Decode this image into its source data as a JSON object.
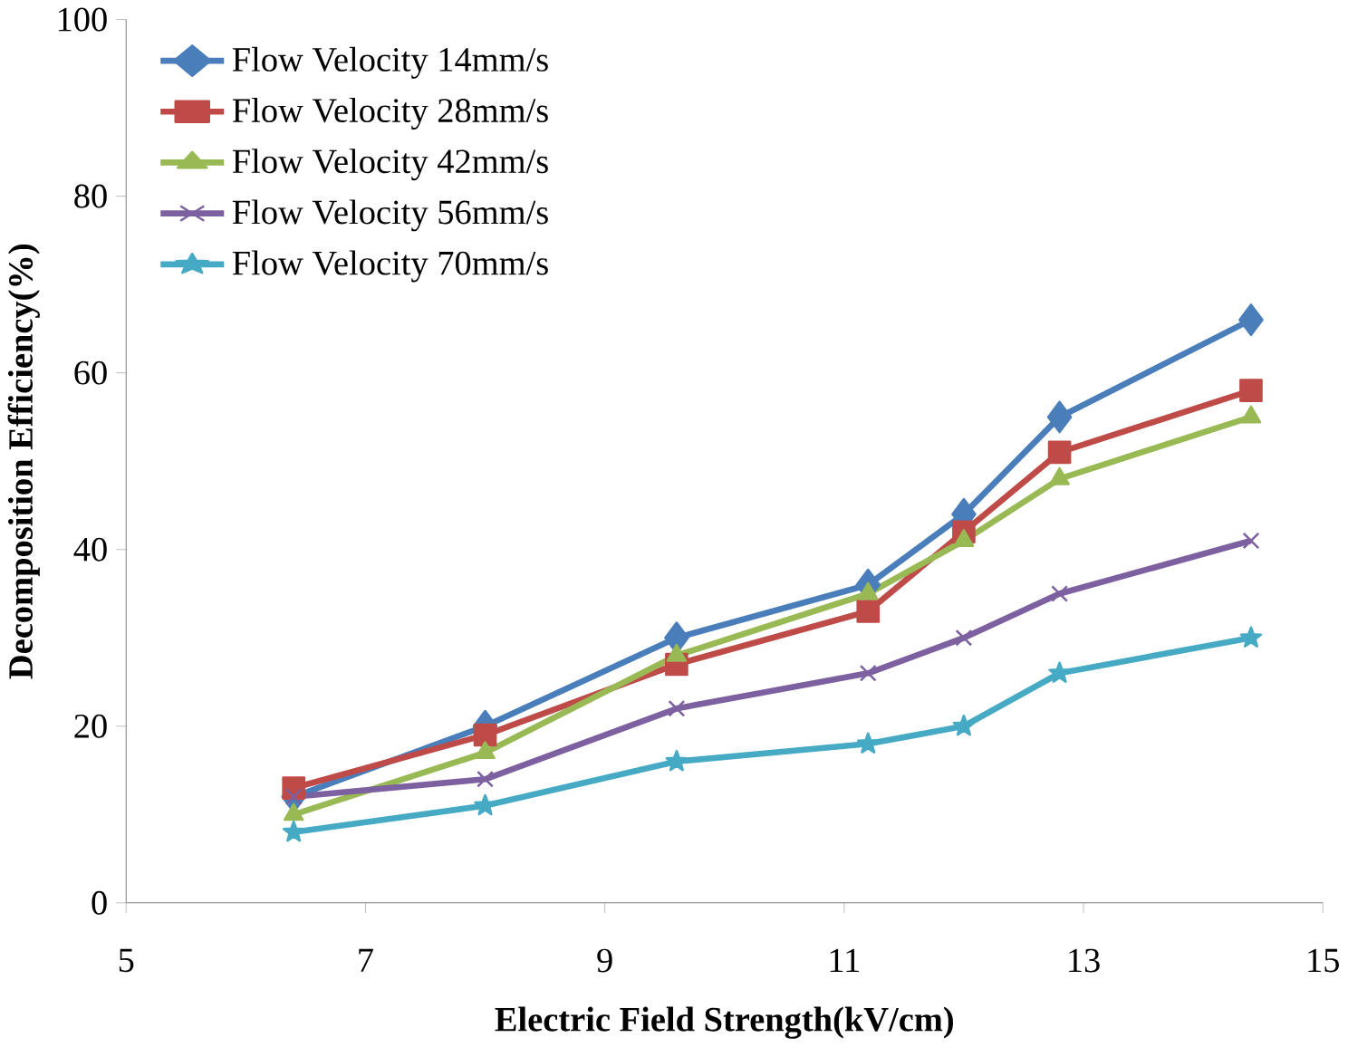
{
  "chart_data": {
    "type": "line",
    "xlabel": "Electric Field Strength(kV/cm)",
    "ylabel": "Decomposition Efficiency(%)",
    "x": [
      6.4,
      8,
      9.6,
      11.2,
      12,
      12.8,
      14.4
    ],
    "series": [
      {
        "name": "Flow Velocity 14mm/s",
        "color": "#4a7ebb",
        "marker": "diamond",
        "values": [
          12,
          20,
          30,
          36,
          44,
          55,
          66
        ]
      },
      {
        "name": "Flow Velocity 28mm/s",
        "color": "#be4b48",
        "marker": "square",
        "values": [
          13,
          19,
          27,
          33,
          42,
          51,
          58
        ]
      },
      {
        "name": "Flow Velocity 42mm/s",
        "color": "#98b954",
        "marker": "triangle",
        "values": [
          10,
          17,
          28,
          35,
          41,
          48,
          55
        ]
      },
      {
        "name": "Flow Velocity 56mm/s",
        "color": "#7d60a0",
        "marker": "cross",
        "values": [
          12,
          14,
          22,
          26,
          30,
          35,
          41
        ]
      },
      {
        "name": "Flow Velocity 70mm/s",
        "color": "#46aac5",
        "marker": "star",
        "values": [
          8,
          11,
          16,
          18,
          20,
          26,
          30
        ]
      }
    ],
    "xlim": [
      5,
      15
    ],
    "ylim": [
      0,
      100
    ],
    "xticks": [
      5,
      7,
      9,
      11,
      13,
      15
    ],
    "yticks": [
      0,
      20,
      40,
      60,
      80,
      100
    ],
    "legend": "top left",
    "grid": false,
    "line_style": "solid"
  }
}
